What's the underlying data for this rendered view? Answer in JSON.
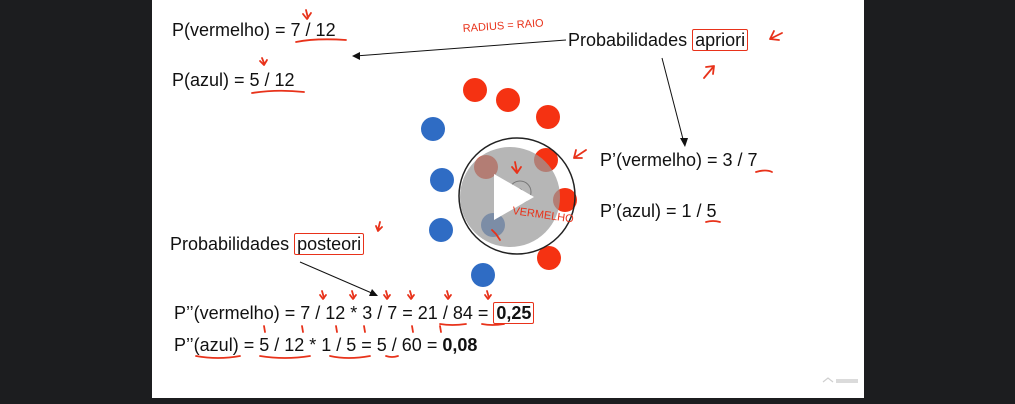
{
  "slide": {
    "p_vermelho": "P(vermelho) = 7 / 12",
    "p_azul": "P(azul) = 5 / 12",
    "apriori_prefix": "Probabilidades",
    "apriori_word": "apriori",
    "radius_note": "RADIUS = RAIO",
    "pl_vermelho": "P’(vermelho) = 3 / 7",
    "pl_azul": "P’(azul) = 1 / 5",
    "posteori_prefix": "Probabilidades",
    "posteori_word": "posteori",
    "pp_vermelho_expr": "P’’(vermelho) = 7 / 12 * 3 / 7 = 21 / 84 =",
    "pp_vermelho_result": "0,25",
    "pp_azul_expr": "P’’(azul) = 5 / 12 * 1 / 5 = 5 / 60 =",
    "pp_azul_result": "0,08",
    "unknown_point_label": "?",
    "vermelho_note": "VERMELHO"
  },
  "colors": {
    "red_dot": "#f53212",
    "blue_dot": "#2f6cc4",
    "ink": "#e8321a",
    "play_overlay": "#9a9a9a"
  },
  "player": {
    "play_icon": "play-icon",
    "watermark_icon": "udemy-watermark-icon"
  }
}
